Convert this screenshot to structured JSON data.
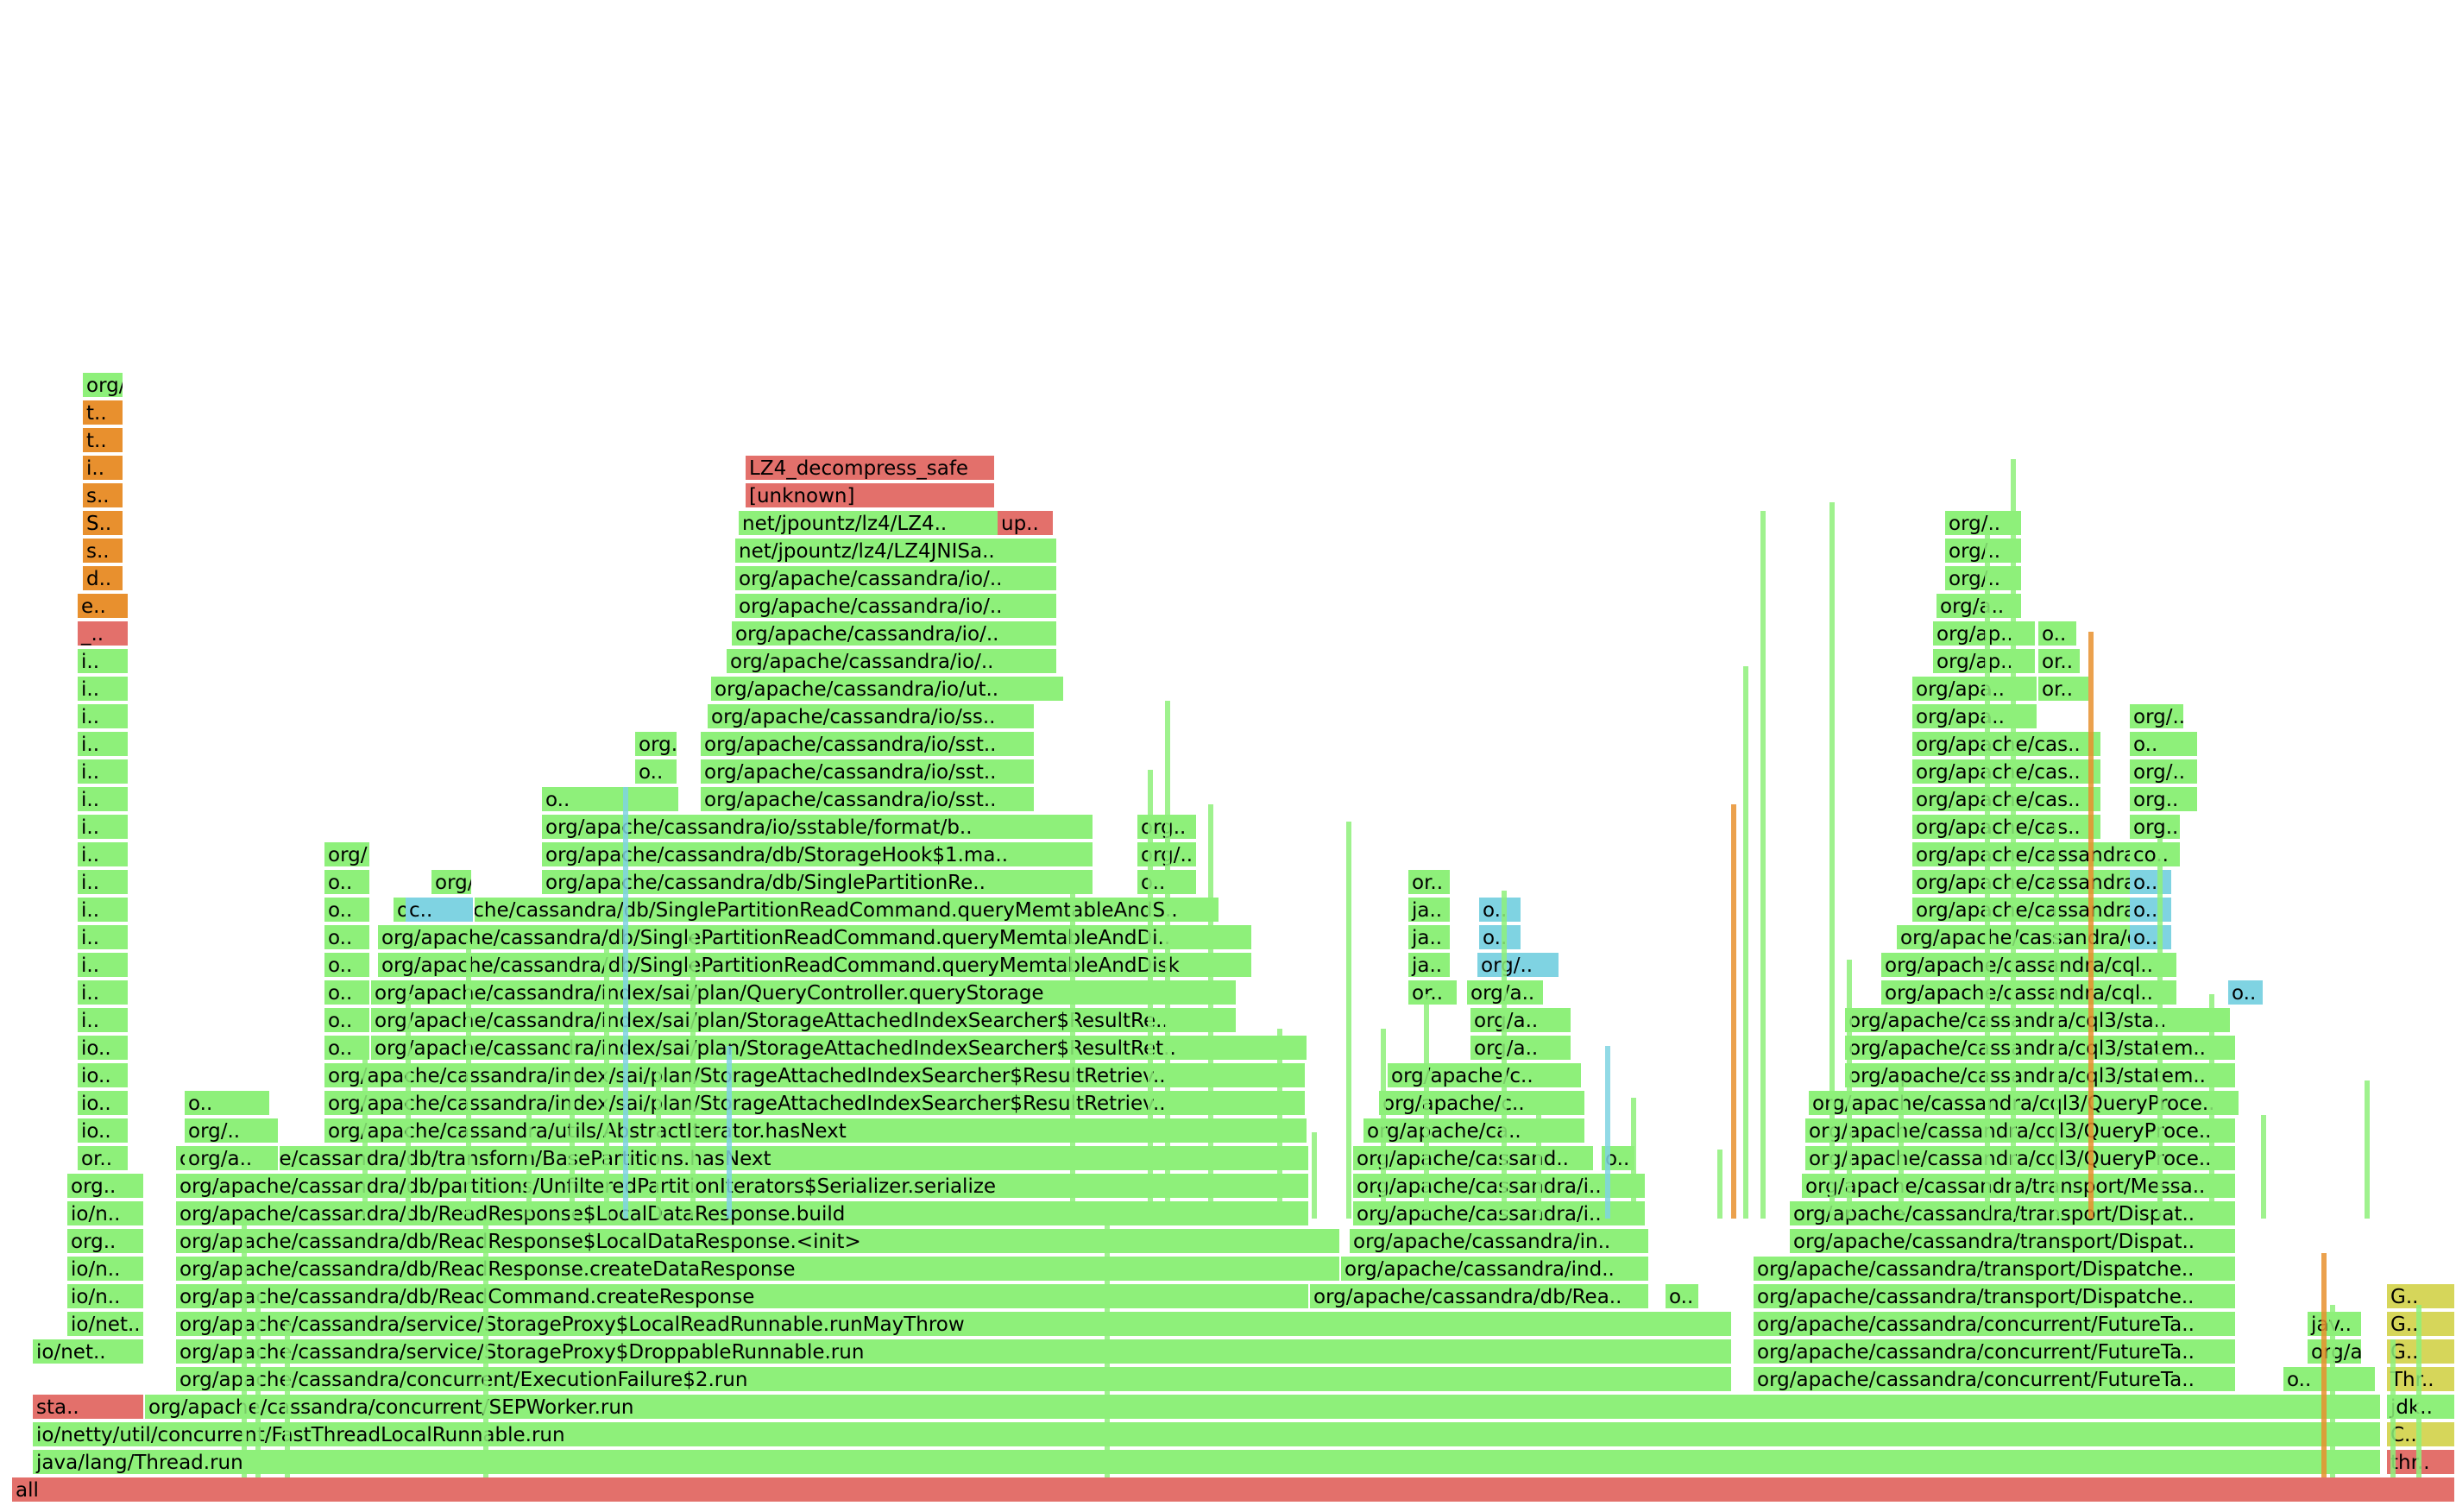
{
  "flamegraph": {
    "colors": {
      "green": "#8ef07a",
      "green_dark": "#74dc68",
      "red": "#e3706b",
      "orange": "#e8902e",
      "aqua": "#7fd3e2",
      "yellow": "#d6d65a"
    },
    "frames": [
      {
        "label": "all",
        "color": "red"
      },
      {
        "label": "java/lang/Thread.run",
        "color": "green"
      },
      {
        "label": "io/netty/util/concurrent/FastThreadLocalRunnable.run",
        "color": "green"
      },
      {
        "label": "org/apache/cassandra/concurrent/SEPWorker.run",
        "color": "green"
      },
      {
        "label": "org/apache/cassandra/concurrent/ExecutionFailure$2.run",
        "color": "green"
      },
      {
        "label": "org/apache/cassandra/service/StorageProxy$DroppableRunnable.run",
        "color": "green"
      },
      {
        "label": "org/apache/cassandra/service/StorageProxy$LocalReadRunnable.runMayThrow",
        "color": "green"
      },
      {
        "label": "org/apache/cassandra/db/ReadCommand.createResponse",
        "color": "green"
      },
      {
        "label": "org/apache/cassandra/db/ReadResponse.createDataResponse",
        "color": "green"
      },
      {
        "label": "org/apache/cassandra/db/ReadResponse$LocalDataResponse.<init>",
        "color": "green"
      },
      {
        "label": "org/apache/cassandra/db/ReadResponse$LocalDataResponse.build",
        "color": "green"
      },
      {
        "label": "org/apache/cassandra/db/partitions/UnfilteredPartitionIterators$Serializer.serialize",
        "color": "green"
      },
      {
        "label": "org/apache/cassandra/db/transform/BasePartitions.hasNext",
        "color": "green"
      },
      {
        "label": "org/apache/cassandra/utils/AbstractIterator.hasNext",
        "color": "green"
      },
      {
        "label": "org/apache/cassandra/index/sai/plan/StorageAttachedIndexSearcher$ResultRetriev..",
        "color": "green"
      },
      {
        "label": "org/apache/cassandra/index/sai/plan/StorageAttachedIndexSearcher$ResultRetriev..",
        "color": "green"
      },
      {
        "label": "org/apache/cassandra/index/sai/plan/StorageAttachedIndexSearcher$ResultRet..",
        "color": "green"
      },
      {
        "label": "org/apache/cassandra/index/sai/plan/StorageAttachedIndexSearcher$ResultRe..",
        "color": "green"
      },
      {
        "label": "org/apache/cassandra/index/sai/plan/QueryController.queryStorage",
        "color": "green"
      },
      {
        "label": "org/apache/cassandra/db/SinglePartitionReadCommand.queryMemtableAndDisk",
        "color": "green"
      },
      {
        "label": "org/apache/cassandra/db/SinglePartitionReadCommand.queryMemtableAndDi..",
        "color": "green"
      },
      {
        "label": "org/apache/cassandra/db/SinglePartitionReadCommand.queryMemtableAndS..",
        "color": "green"
      },
      {
        "label": "org/apache/cassandra/db/SinglePartitionRe..",
        "color": "green"
      },
      {
        "label": "org/apache/cassandra/db/StorageHook$1.ma..",
        "color": "green"
      },
      {
        "label": "org/apache/cassandra/io/sstable/format/b..",
        "color": "green"
      },
      {
        "label": "org/apache/cassandra/io/sst..",
        "color": "green"
      },
      {
        "label": "org/apache/cassandra/io/sst..",
        "color": "green"
      },
      {
        "label": "org/apache/cassandra/io/sst..",
        "color": "green"
      },
      {
        "label": "org/apache/cassandra/io/ss..",
        "color": "green"
      },
      {
        "label": "org/apache/cassandra/io/ut..",
        "color": "green"
      },
      {
        "label": "org/apache/cassandra/io/..",
        "color": "green"
      },
      {
        "label": "org/apache/cassandra/io/..",
        "color": "green"
      },
      {
        "label": "org/apache/cassandra/io/..",
        "color": "green"
      },
      {
        "label": "org/apache/cassandra/io/..",
        "color": "green"
      },
      {
        "label": "net/jpountz/lz4/LZ4JNISa..",
        "color": "green"
      },
      {
        "label": "net/jpountz/lz4/LZ4..",
        "color": "green"
      },
      {
        "label": "up..",
        "color": "red"
      },
      {
        "label": "[unknown]",
        "color": "red"
      },
      {
        "label": "LZ4_decompress_safe",
        "color": "red"
      },
      {
        "label": "org/apache/cassandra/db/Rea..",
        "color": "green"
      },
      {
        "label": "o..",
        "color": "green"
      },
      {
        "label": "org/apache/cassandra/ind..",
        "color": "green"
      },
      {
        "label": "org/apache/cassandra/in..",
        "color": "green"
      },
      {
        "label": "org/apache/cassandra/i..",
        "color": "green"
      },
      {
        "label": "org/apache/cassandra/i..",
        "color": "green"
      },
      {
        "label": "org/apache/cassand..",
        "color": "green"
      },
      {
        "label": "o..",
        "color": "green"
      },
      {
        "label": "org/apache/ca..",
        "color": "green"
      },
      {
        "label": "org/apache/c..",
        "color": "green"
      },
      {
        "label": "org/apache/c..",
        "color": "green"
      },
      {
        "label": "org/a..",
        "color": "green"
      },
      {
        "label": "org/a..",
        "color": "green"
      },
      {
        "label": "or..",
        "color": "green"
      },
      {
        "label": "ja..",
        "color": "green"
      },
      {
        "label": "ja..",
        "color": "green"
      },
      {
        "label": "ja..",
        "color": "green"
      },
      {
        "label": "or..",
        "color": "green"
      },
      {
        "label": "org/a..",
        "color": "green"
      },
      {
        "label": "org/..",
        "color": "aqua"
      },
      {
        "label": "o..",
        "color": "aqua"
      },
      {
        "label": "o..",
        "color": "aqua"
      },
      {
        "label": "org/apache/cassandra/concurrent/FutureTa..",
        "color": "green"
      },
      {
        "label": "org/apache/cassandra/concurrent/FutureTa..",
        "color": "green"
      },
      {
        "label": "org/apache/cassandra/concurrent/FutureTa..",
        "color": "green"
      },
      {
        "label": "org/apache/cassandra/transport/Dispatche..",
        "color": "green"
      },
      {
        "label": "org/apache/cassandra/transport/Dispatche..",
        "color": "green"
      },
      {
        "label": "org/apache/cassandra/transport/Dispat..",
        "color": "green"
      },
      {
        "label": "org/apache/cassandra/transport/Dispat..",
        "color": "green"
      },
      {
        "label": "org/apache/cassandra/transport/Messa..",
        "color": "green"
      },
      {
        "label": "org/apache/cassandra/cql3/QueryProce..",
        "color": "green"
      },
      {
        "label": "org/apache/cassandra/cql3/QueryProce..",
        "color": "green"
      },
      {
        "label": "org/apache/cassandra/cql3/QueryProce..",
        "color": "green"
      },
      {
        "label": "org/apache/cassandra/cql3/statem..",
        "color": "green"
      },
      {
        "label": "org/apache/cassandra/cql3/statem..",
        "color": "green"
      },
      {
        "label": "org/apache/cassandra/cql3/sta..",
        "color": "green"
      },
      {
        "label": "org/apache/cassandra/cql..",
        "color": "green"
      },
      {
        "label": "org/apache/cassandra/cql..",
        "color": "green"
      },
      {
        "label": "org/apache/cassandra/d..",
        "color": "green"
      },
      {
        "label": "org/apache/cassandra/..",
        "color": "green"
      },
      {
        "label": "org/apache/cassandra/..",
        "color": "green"
      },
      {
        "label": "org/apache/cassandra/..",
        "color": "green"
      },
      {
        "label": "org/apache/cas..",
        "color": "green"
      },
      {
        "label": "org/apache/cas..",
        "color": "green"
      },
      {
        "label": "org/apache/cas..",
        "color": "green"
      },
      {
        "label": "org/apache/cas..",
        "color": "green"
      },
      {
        "label": "org/apa..",
        "color": "green"
      },
      {
        "label": "org/apa..",
        "color": "green"
      },
      {
        "label": "org/ap..",
        "color": "green"
      },
      {
        "label": "org/ap..",
        "color": "green"
      },
      {
        "label": "org/a..",
        "color": "green"
      },
      {
        "label": "org/..",
        "color": "green"
      },
      {
        "label": "org/..",
        "color": "green"
      },
      {
        "label": "org/..",
        "color": "green"
      },
      {
        "label": "o..",
        "color": "green"
      },
      {
        "label": "or..",
        "color": "green"
      },
      {
        "label": "or..",
        "color": "green"
      },
      {
        "label": "org/..",
        "color": "green"
      },
      {
        "label": "o..",
        "color": "green"
      },
      {
        "label": "org/..",
        "color": "green"
      },
      {
        "label": "org..",
        "color": "green"
      },
      {
        "label": "org..",
        "color": "green"
      },
      {
        "label": "co..",
        "color": "green"
      },
      {
        "label": "o..",
        "color": "aqua"
      },
      {
        "label": "o..",
        "color": "aqua"
      },
      {
        "label": "o..",
        "color": "aqua"
      },
      {
        "label": "o..",
        "color": "aqua"
      },
      {
        "label": "o..",
        "color": "green"
      },
      {
        "label": "org/ap..",
        "color": "green"
      },
      {
        "label": "jav..",
        "color": "green"
      },
      {
        "label": "jdk..",
        "color": "green"
      },
      {
        "label": "Thr..",
        "color": "yellow"
      },
      {
        "label": "G..",
        "color": "yellow"
      },
      {
        "label": "G..",
        "color": "yellow"
      },
      {
        "label": "G..",
        "color": "yellow"
      },
      {
        "label": "C..",
        "color": "yellow"
      },
      {
        "label": "thr..",
        "color": "red"
      },
      {
        "label": "sta..",
        "color": "red"
      },
      {
        "label": "io/net..",
        "color": "green"
      },
      {
        "label": "io/net..",
        "color": "green"
      },
      {
        "label": "io/n..",
        "color": "green"
      },
      {
        "label": "io/n..",
        "color": "green"
      },
      {
        "label": "io/n..",
        "color": "green"
      },
      {
        "label": "org..",
        "color": "green"
      },
      {
        "label": "org..",
        "color": "green"
      },
      {
        "label": "or..",
        "color": "green"
      },
      {
        "label": "io..",
        "color": "green"
      },
      {
        "label": "io..",
        "color": "green"
      },
      {
        "label": "io..",
        "color": "green"
      },
      {
        "label": "io..",
        "color": "green"
      },
      {
        "label": "i..",
        "color": "green"
      },
      {
        "label": "i..",
        "color": "green"
      },
      {
        "label": "i..",
        "color": "green"
      },
      {
        "label": "i..",
        "color": "green"
      },
      {
        "label": "i..",
        "color": "green"
      },
      {
        "label": "i..",
        "color": "green"
      },
      {
        "label": "i..",
        "color": "green"
      },
      {
        "label": "i..",
        "color": "green"
      },
      {
        "label": "i..",
        "color": "green"
      },
      {
        "label": "i..",
        "color": "green"
      },
      {
        "label": "i..",
        "color": "green"
      },
      {
        "label": "i..",
        "color": "green"
      },
      {
        "label": "i..",
        "color": "green"
      },
      {
        "label": "i..",
        "color": "green"
      },
      {
        "label": "_..",
        "color": "red"
      },
      {
        "label": "e..",
        "color": "orange"
      },
      {
        "label": "d..",
        "color": "orange"
      },
      {
        "label": "s..",
        "color": "orange"
      },
      {
        "label": "S..",
        "color": "orange"
      },
      {
        "label": "s..",
        "color": "orange"
      },
      {
        "label": "i..",
        "color": "orange"
      },
      {
        "label": "t..",
        "color": "orange"
      },
      {
        "label": "t..",
        "color": "orange"
      },
      {
        "label": "org/a..",
        "color": "green"
      },
      {
        "label": "org/a..",
        "color": "green"
      },
      {
        "label": "org/..",
        "color": "green"
      },
      {
        "label": "o..",
        "color": "green"
      },
      {
        "label": "o..",
        "color": "green"
      },
      {
        "label": "o..",
        "color": "green"
      },
      {
        "label": "o..",
        "color": "green"
      },
      {
        "label": "o..",
        "color": "green"
      },
      {
        "label": "o..",
        "color": "green"
      },
      {
        "label": "o..",
        "color": "green"
      },
      {
        "label": "o..",
        "color": "green"
      },
      {
        "label": "org/..",
        "color": "green"
      },
      {
        "label": "c..",
        "color": "aqua"
      },
      {
        "label": "org/apache/..",
        "color": "green"
      },
      {
        "label": "o..",
        "color": "green"
      },
      {
        "label": "o..",
        "color": "green"
      },
      {
        "label": "org..",
        "color": "green"
      },
      {
        "label": "org..",
        "color": "green"
      },
      {
        "label": "org/..",
        "color": "green"
      },
      {
        "label": "o..",
        "color": "green"
      }
    ]
  }
}
